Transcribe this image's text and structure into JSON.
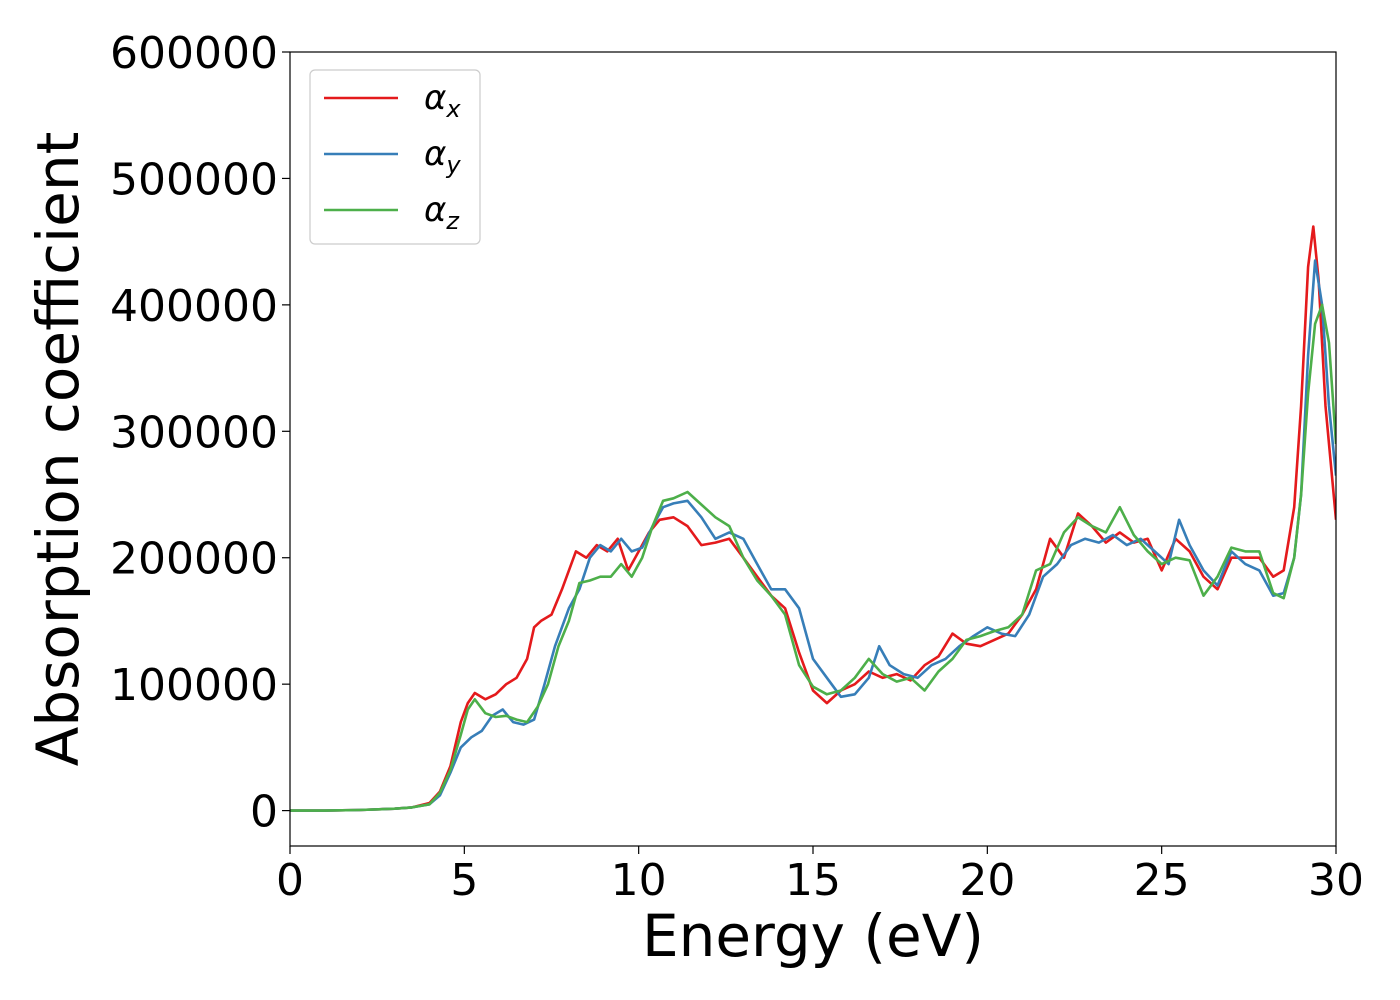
{
  "chart_data": {
    "type": "line",
    "title": "",
    "xlabel": "Energy (eV)",
    "ylabel": "Absorption coefficient",
    "xlim": [
      0,
      30
    ],
    "ylim": [
      -28000,
      600000
    ],
    "xticks": [
      0,
      5,
      10,
      15,
      20,
      25,
      30
    ],
    "xtick_labels": [
      "0",
      "5",
      "10",
      "15",
      "20",
      "25",
      "30"
    ],
    "yticks": [
      0,
      100000,
      200000,
      300000,
      400000,
      500000,
      600000
    ],
    "ytick_labels": [
      "0",
      "100000",
      "200000",
      "300000",
      "400000",
      "500000",
      "600000"
    ],
    "grid": false,
    "legend_position": "top-left",
    "series": [
      {
        "name": "α",
        "subscript": "x",
        "color": "#e41a1c",
        "x": [
          0,
          1,
          2,
          3,
          3.5,
          4,
          4.3,
          4.6,
          4.9,
          5.1,
          5.3,
          5.6,
          5.9,
          6.2,
          6.5,
          6.8,
          7.0,
          7.2,
          7.5,
          7.8,
          8.2,
          8.5,
          8.8,
          9.1,
          9.4,
          9.7,
          10.0,
          10.3,
          10.6,
          11.0,
          11.4,
          11.8,
          12.2,
          12.6,
          13.0,
          13.4,
          13.8,
          14.2,
          14.6,
          15.0,
          15.4,
          15.8,
          16.2,
          16.6,
          17.0,
          17.4,
          17.8,
          18.2,
          18.6,
          19.0,
          19.4,
          19.8,
          20.2,
          20.6,
          21.0,
          21.4,
          21.8,
          22.2,
          22.6,
          23.0,
          23.4,
          23.8,
          24.2,
          24.6,
          25.0,
          25.4,
          25.8,
          26.2,
          26.6,
          27.0,
          27.4,
          27.8,
          28.2,
          28.5,
          28.8,
          29.0,
          29.2,
          29.35,
          29.5,
          29.7,
          30.0
        ],
        "y": [
          0,
          0,
          500,
          1500,
          2500,
          6000,
          15000,
          35000,
          70000,
          85000,
          93000,
          88000,
          92000,
          100000,
          105000,
          120000,
          145000,
          150000,
          155000,
          175000,
          205000,
          200000,
          210000,
          205000,
          215000,
          190000,
          205000,
          220000,
          230000,
          232000,
          225000,
          210000,
          212000,
          215000,
          200000,
          185000,
          170000,
          160000,
          125000,
          95000,
          85000,
          95000,
          100000,
          110000,
          105000,
          108000,
          103000,
          115000,
          122000,
          140000,
          132000,
          130000,
          135000,
          140000,
          155000,
          175000,
          215000,
          200000,
          235000,
          225000,
          212000,
          220000,
          212000,
          215000,
          190000,
          215000,
          205000,
          185000,
          175000,
          200000,
          200000,
          200000,
          185000,
          190000,
          240000,
          320000,
          430000,
          462000,
          420000,
          320000,
          230000
        ]
      },
      {
        "name": "α",
        "subscript": "y",
        "color": "#377eb8",
        "x": [
          0,
          1,
          2,
          3,
          3.5,
          4,
          4.3,
          4.6,
          4.9,
          5.2,
          5.5,
          5.8,
          6.1,
          6.4,
          6.7,
          7.0,
          7.3,
          7.6,
          8.0,
          8.3,
          8.6,
          8.9,
          9.2,
          9.5,
          9.8,
          10.1,
          10.4,
          10.7,
          11.0,
          11.4,
          11.8,
          12.2,
          12.6,
          13.0,
          13.4,
          13.8,
          14.2,
          14.6,
          15.0,
          15.4,
          15.8,
          16.2,
          16.6,
          16.9,
          17.2,
          17.6,
          18.0,
          18.4,
          18.8,
          19.2,
          19.6,
          20.0,
          20.4,
          20.8,
          21.2,
          21.6,
          22.0,
          22.4,
          22.8,
          23.2,
          23.6,
          24.0,
          24.4,
          24.8,
          25.2,
          25.5,
          25.8,
          26.2,
          26.6,
          27.0,
          27.4,
          27.8,
          28.2,
          28.5,
          28.8,
          29.0,
          29.2,
          29.4,
          29.6,
          29.8,
          30.0
        ],
        "y": [
          0,
          0,
          500,
          1500,
          2500,
          5000,
          12000,
          30000,
          50000,
          58000,
          63000,
          75000,
          80000,
          70000,
          68000,
          72000,
          100000,
          130000,
          160000,
          175000,
          200000,
          210000,
          205000,
          215000,
          205000,
          208000,
          225000,
          240000,
          243000,
          245000,
          232000,
          215000,
          220000,
          215000,
          195000,
          175000,
          175000,
          160000,
          120000,
          105000,
          90000,
          92000,
          105000,
          130000,
          115000,
          108000,
          105000,
          115000,
          120000,
          130000,
          138000,
          145000,
          140000,
          138000,
          155000,
          185000,
          195000,
          210000,
          215000,
          212000,
          218000,
          210000,
          215000,
          205000,
          195000,
          230000,
          210000,
          190000,
          178000,
          205000,
          195000,
          190000,
          170000,
          172000,
          200000,
          250000,
          360000,
          435000,
          400000,
          320000,
          265000
        ]
      },
      {
        "name": "α",
        "subscript": "z",
        "color": "#4daf4a",
        "x": [
          0,
          1,
          2,
          3,
          3.5,
          4,
          4.3,
          4.6,
          4.9,
          5.1,
          5.3,
          5.6,
          5.9,
          6.2,
          6.5,
          6.8,
          7.1,
          7.4,
          7.7,
          8.0,
          8.3,
          8.6,
          8.9,
          9.2,
          9.5,
          9.8,
          10.1,
          10.4,
          10.7,
          11.0,
          11.4,
          11.8,
          12.2,
          12.6,
          13.0,
          13.4,
          13.8,
          14.2,
          14.6,
          15.0,
          15.4,
          15.8,
          16.2,
          16.6,
          17.0,
          17.4,
          17.8,
          18.2,
          18.6,
          19.0,
          19.4,
          19.8,
          20.2,
          20.6,
          21.0,
          21.4,
          21.8,
          22.2,
          22.6,
          23.0,
          23.4,
          23.8,
          24.2,
          24.6,
          25.0,
          25.4,
          25.8,
          26.2,
          26.6,
          27.0,
          27.4,
          27.8,
          28.2,
          28.5,
          28.8,
          29.0,
          29.2,
          29.4,
          29.6,
          29.8,
          30.0
        ],
        "y": [
          0,
          0,
          500,
          1500,
          2500,
          5000,
          14000,
          32000,
          60000,
          80000,
          88000,
          77000,
          74000,
          75000,
          72000,
          70000,
          82000,
          100000,
          130000,
          150000,
          180000,
          182000,
          185000,
          185000,
          195000,
          185000,
          200000,
          225000,
          245000,
          247000,
          252000,
          242000,
          232000,
          225000,
          200000,
          182000,
          170000,
          155000,
          115000,
          98000,
          92000,
          95000,
          105000,
          120000,
          108000,
          102000,
          105000,
          95000,
          110000,
          120000,
          135000,
          138000,
          142000,
          145000,
          155000,
          190000,
          195000,
          220000,
          232000,
          225000,
          220000,
          240000,
          218000,
          205000,
          195000,
          200000,
          198000,
          170000,
          185000,
          208000,
          205000,
          205000,
          172000,
          168000,
          200000,
          250000,
          330000,
          385000,
          400000,
          370000,
          290000
        ]
      }
    ]
  }
}
